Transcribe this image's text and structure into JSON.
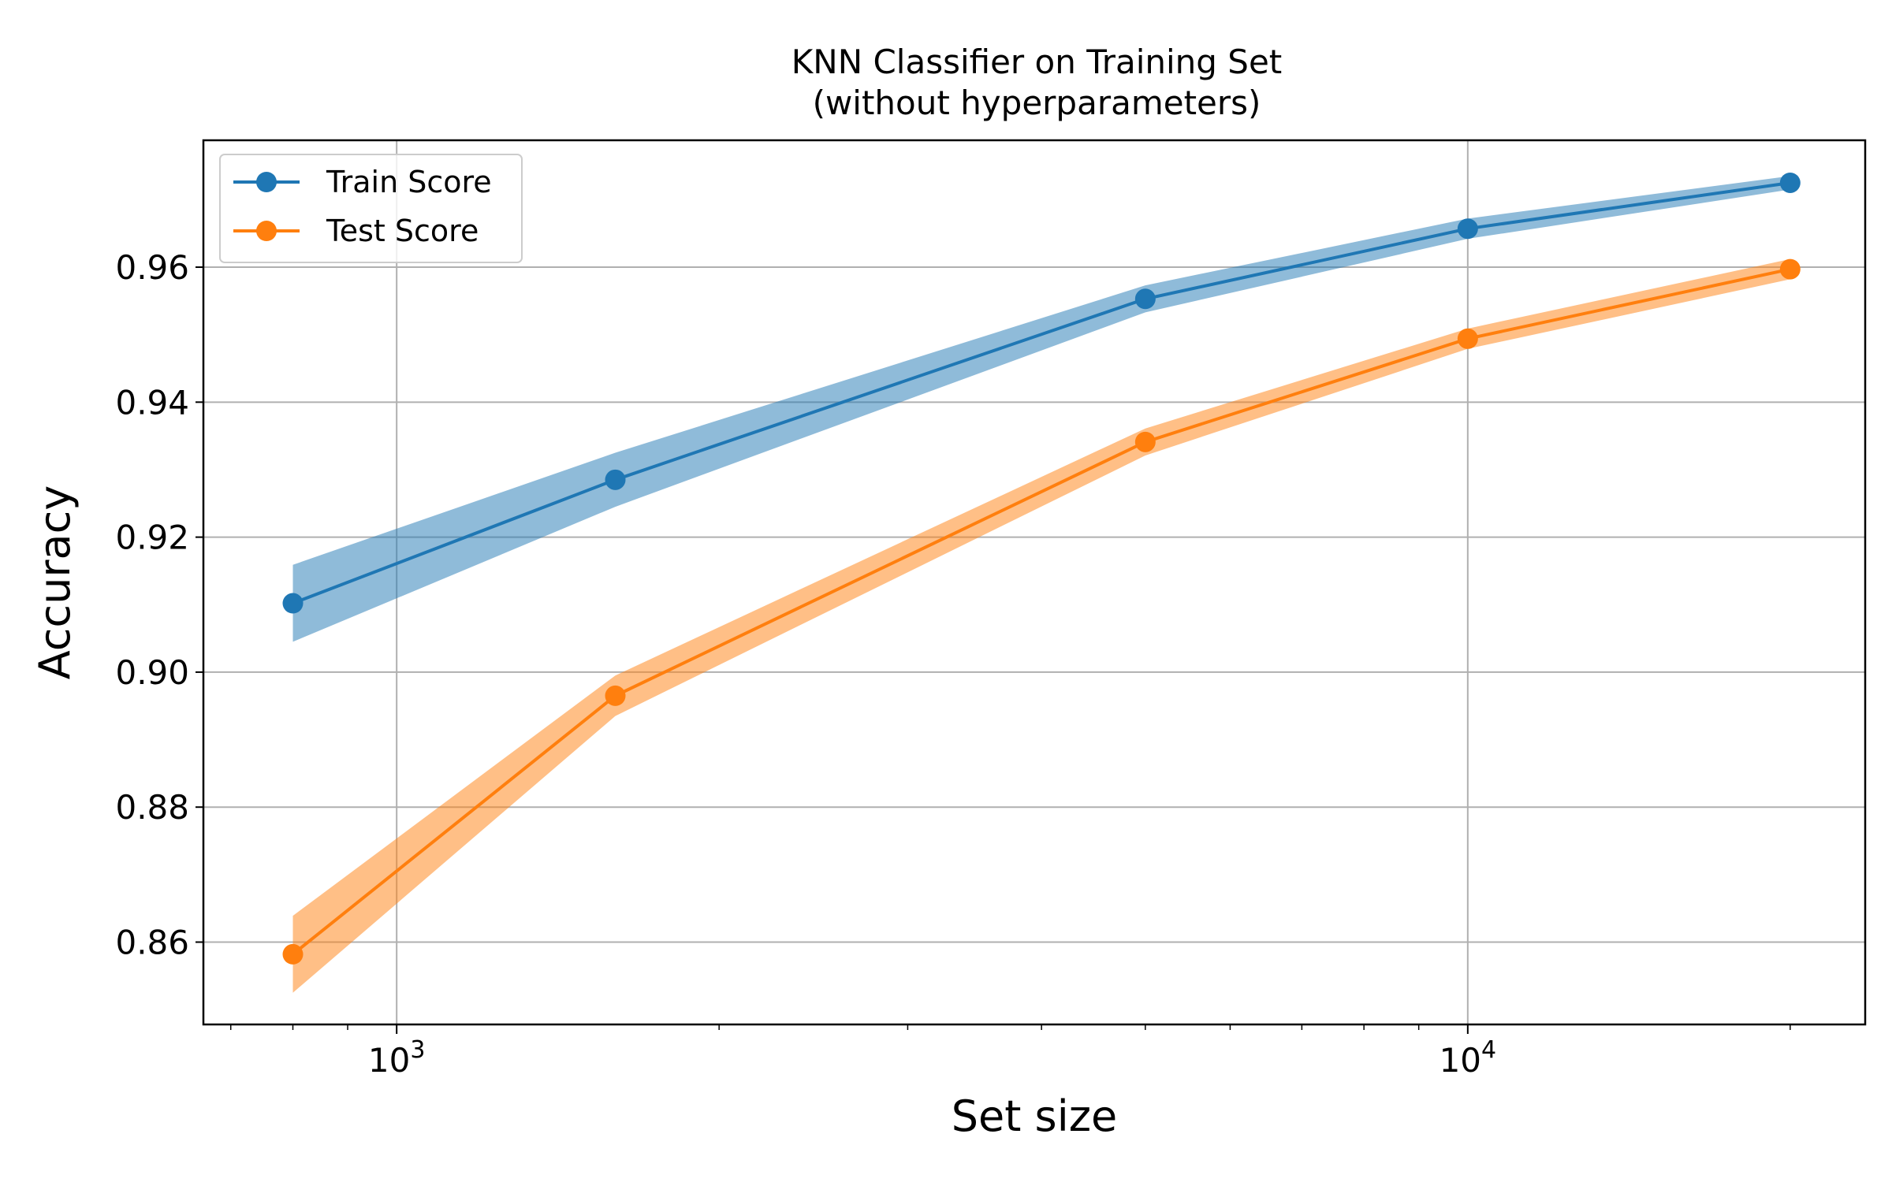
{
  "chart_data": {
    "type": "line",
    "title": "KNN Classifier on Training Set",
    "subtitle": "(without hyperparameters)",
    "xlabel": "Set size",
    "ylabel": "Accuracy",
    "xscale": "log",
    "xlim": [
      660,
      23500
    ],
    "ylim": [
      0.8478,
      0.9788
    ],
    "x": [
      800,
      1600,
      5000,
      10000,
      20000
    ],
    "x_ticks": [
      {
        "value": 1000,
        "base": "10",
        "exp": "3"
      },
      {
        "value": 10000,
        "base": "10",
        "exp": "4"
      }
    ],
    "y_ticks": [
      0.86,
      0.88,
      0.9,
      0.92,
      0.94,
      0.96
    ],
    "y_tick_labels": [
      "0.86",
      "0.88",
      "0.90",
      "0.92",
      "0.94",
      "0.96"
    ],
    "grid": true,
    "legend_position": "top-left",
    "series": [
      {
        "name": "Train Score",
        "color": "#1f77b4",
        "band_color": "#1f77b4",
        "values": [
          0.9102,
          0.9285,
          0.9553,
          0.9657,
          0.9725
        ],
        "lower": [
          0.9045,
          0.9245,
          0.9533,
          0.9642,
          0.9715
        ],
        "upper": [
          0.9159,
          0.9325,
          0.9573,
          0.9672,
          0.9735
        ]
      },
      {
        "name": "Test Score",
        "color": "#ff7f0e",
        "band_color": "#ff7f0e",
        "values": [
          0.8582,
          0.8965,
          0.9341,
          0.9494,
          0.9597
        ],
        "lower": [
          0.8525,
          0.8935,
          0.9321,
          0.9479,
          0.9582
        ],
        "upper": [
          0.8639,
          0.8995,
          0.9361,
          0.9509,
          0.9612
        ]
      }
    ]
  }
}
